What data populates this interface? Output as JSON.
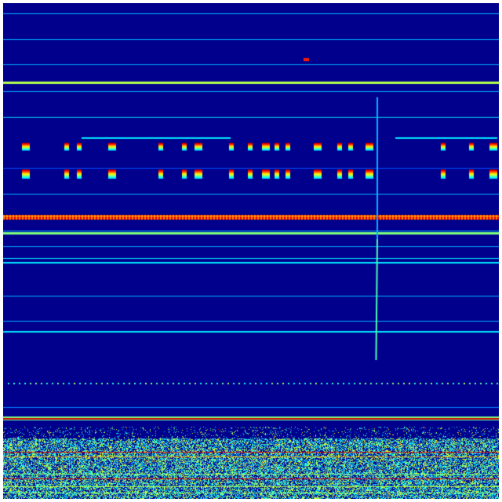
{
  "image": {
    "kind": "spectrogram-heatmap",
    "colormap": "jet",
    "colors": {
      "background": "#00008c",
      "low": "#0000ff",
      "mid_low": "#00a0ff",
      "mid": "#40ffc0",
      "mid_high": "#ffff00",
      "high": "#ff0000"
    }
  }
}
